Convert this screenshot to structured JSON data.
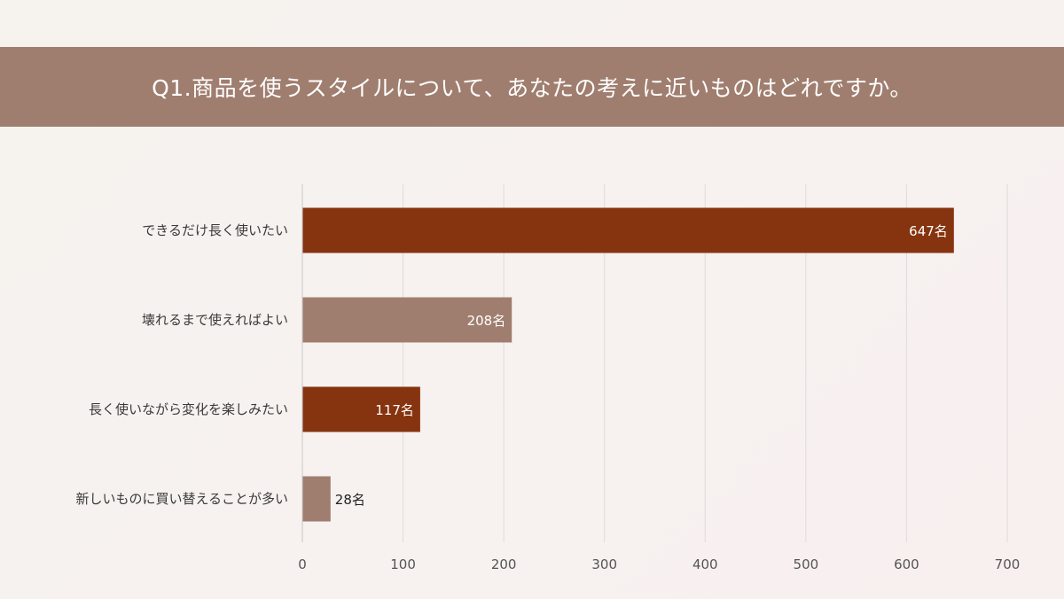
{
  "title": "Q1.商品を使うスタイルについて、あなたの考えに近いものはどれですか。",
  "colors": {
    "header": "#a07e6f",
    "dark_bar": "#86340f",
    "light_bar": "#a07e6f",
    "grid": "#dcdcdc"
  },
  "chart_data": {
    "type": "bar",
    "orientation": "horizontal",
    "categories": [
      "できるだけ長く使いたい",
      "壊れるまで使えればよい",
      "長く使いながら変化を楽しみたい",
      "新しいものに買い替えることが多い"
    ],
    "values": [
      647,
      208,
      117,
      28
    ],
    "value_labels": [
      "647名",
      "208名",
      "117名",
      "28名"
    ],
    "bar_colors": [
      "#86340f",
      "#a07e6f",
      "#86340f",
      "#a07e6f"
    ],
    "xlim": [
      0,
      700
    ],
    "xticks": [
      0,
      100,
      200,
      300,
      400,
      500,
      600,
      700
    ],
    "grid": "vertical"
  }
}
